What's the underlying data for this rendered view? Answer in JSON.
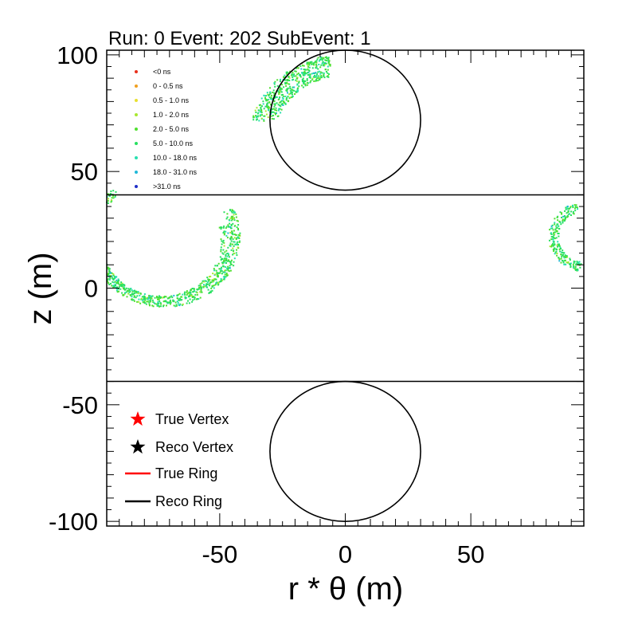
{
  "chart_data": {
    "type": "scatter",
    "title": "Run: 0  Event: 202  SubEvent: 1",
    "xlabel": "r * θ (m)",
    "ylabel": "z (m)",
    "xlim": [
      -95,
      95
    ],
    "ylim": [
      -102,
      102
    ],
    "x_ticks": [
      -50,
      0,
      50
    ],
    "y_ticks": [
      -100,
      -50,
      0,
      50,
      100
    ],
    "grid": false,
    "frame_color": "#000000",
    "divider_lines_z": [
      40,
      -40
    ],
    "reco_rings": [
      {
        "cx": 0,
        "cz": 72,
        "r": 30
      },
      {
        "cx": 0,
        "cz": -70,
        "r": 30
      }
    ],
    "hit_arcs": [
      {
        "cx": 0,
        "cz": 62,
        "r": 36,
        "a0": 100,
        "a1": 165,
        "n": 300,
        "spread": 2.5
      },
      {
        "cx": 0,
        "cz": 62,
        "r": 31,
        "a0": 102,
        "a1": 160,
        "n": 200,
        "spread": 2.0
      },
      {
        "cx": -72,
        "cz": 22,
        "r": 28,
        "a0": 135,
        "a1": 385,
        "n": 650,
        "spread": 2.2
      },
      {
        "cx": -73,
        "cz": 20,
        "r": 25,
        "a0": 180,
        "a1": 375,
        "n": 250,
        "spread": 1.6
      },
      {
        "cx": 96,
        "cz": 22,
        "r": 13,
        "a0": 105,
        "a1": 260,
        "n": 220,
        "spread": 2.0
      }
    ],
    "time_legend": {
      "position": "top-left",
      "entries": [
        {
          "label": "<0 ns",
          "color": "#e8301c"
        },
        {
          "label": "0 - 0.5 ns",
          "color": "#f0a020"
        },
        {
          "label": "0.5 - 1.0 ns",
          "color": "#e8e030"
        },
        {
          "label": "1.0 - 2.0 ns",
          "color": "#a8e830"
        },
        {
          "label": "2.0 - 5.0 ns",
          "color": "#50e030"
        },
        {
          "label": "5.0 - 10.0 ns",
          "color": "#28e060"
        },
        {
          "label": "10.0 - 18.0 ns",
          "color": "#28e0b0"
        },
        {
          "label": "18.0 - 31.0 ns",
          "color": "#20b8d8"
        },
        {
          "label": ">31.0 ns",
          "color": "#2030c8"
        }
      ]
    },
    "marker_legend": {
      "position": "bottom-left",
      "entries": [
        {
          "label": "True Vertex",
          "kind": "star",
          "color": "#ff0000"
        },
        {
          "label": "Reco Vertex",
          "kind": "star",
          "color": "#000000"
        },
        {
          "label": "True Ring",
          "kind": "line",
          "color": "#ff0000"
        },
        {
          "label": "Reco Ring",
          "kind": "line",
          "color": "#000000"
        }
      ]
    },
    "hit_colors": [
      "#28e060",
      "#50e030",
      "#28e0b0",
      "#a8e830",
      "#20b8d8"
    ]
  }
}
